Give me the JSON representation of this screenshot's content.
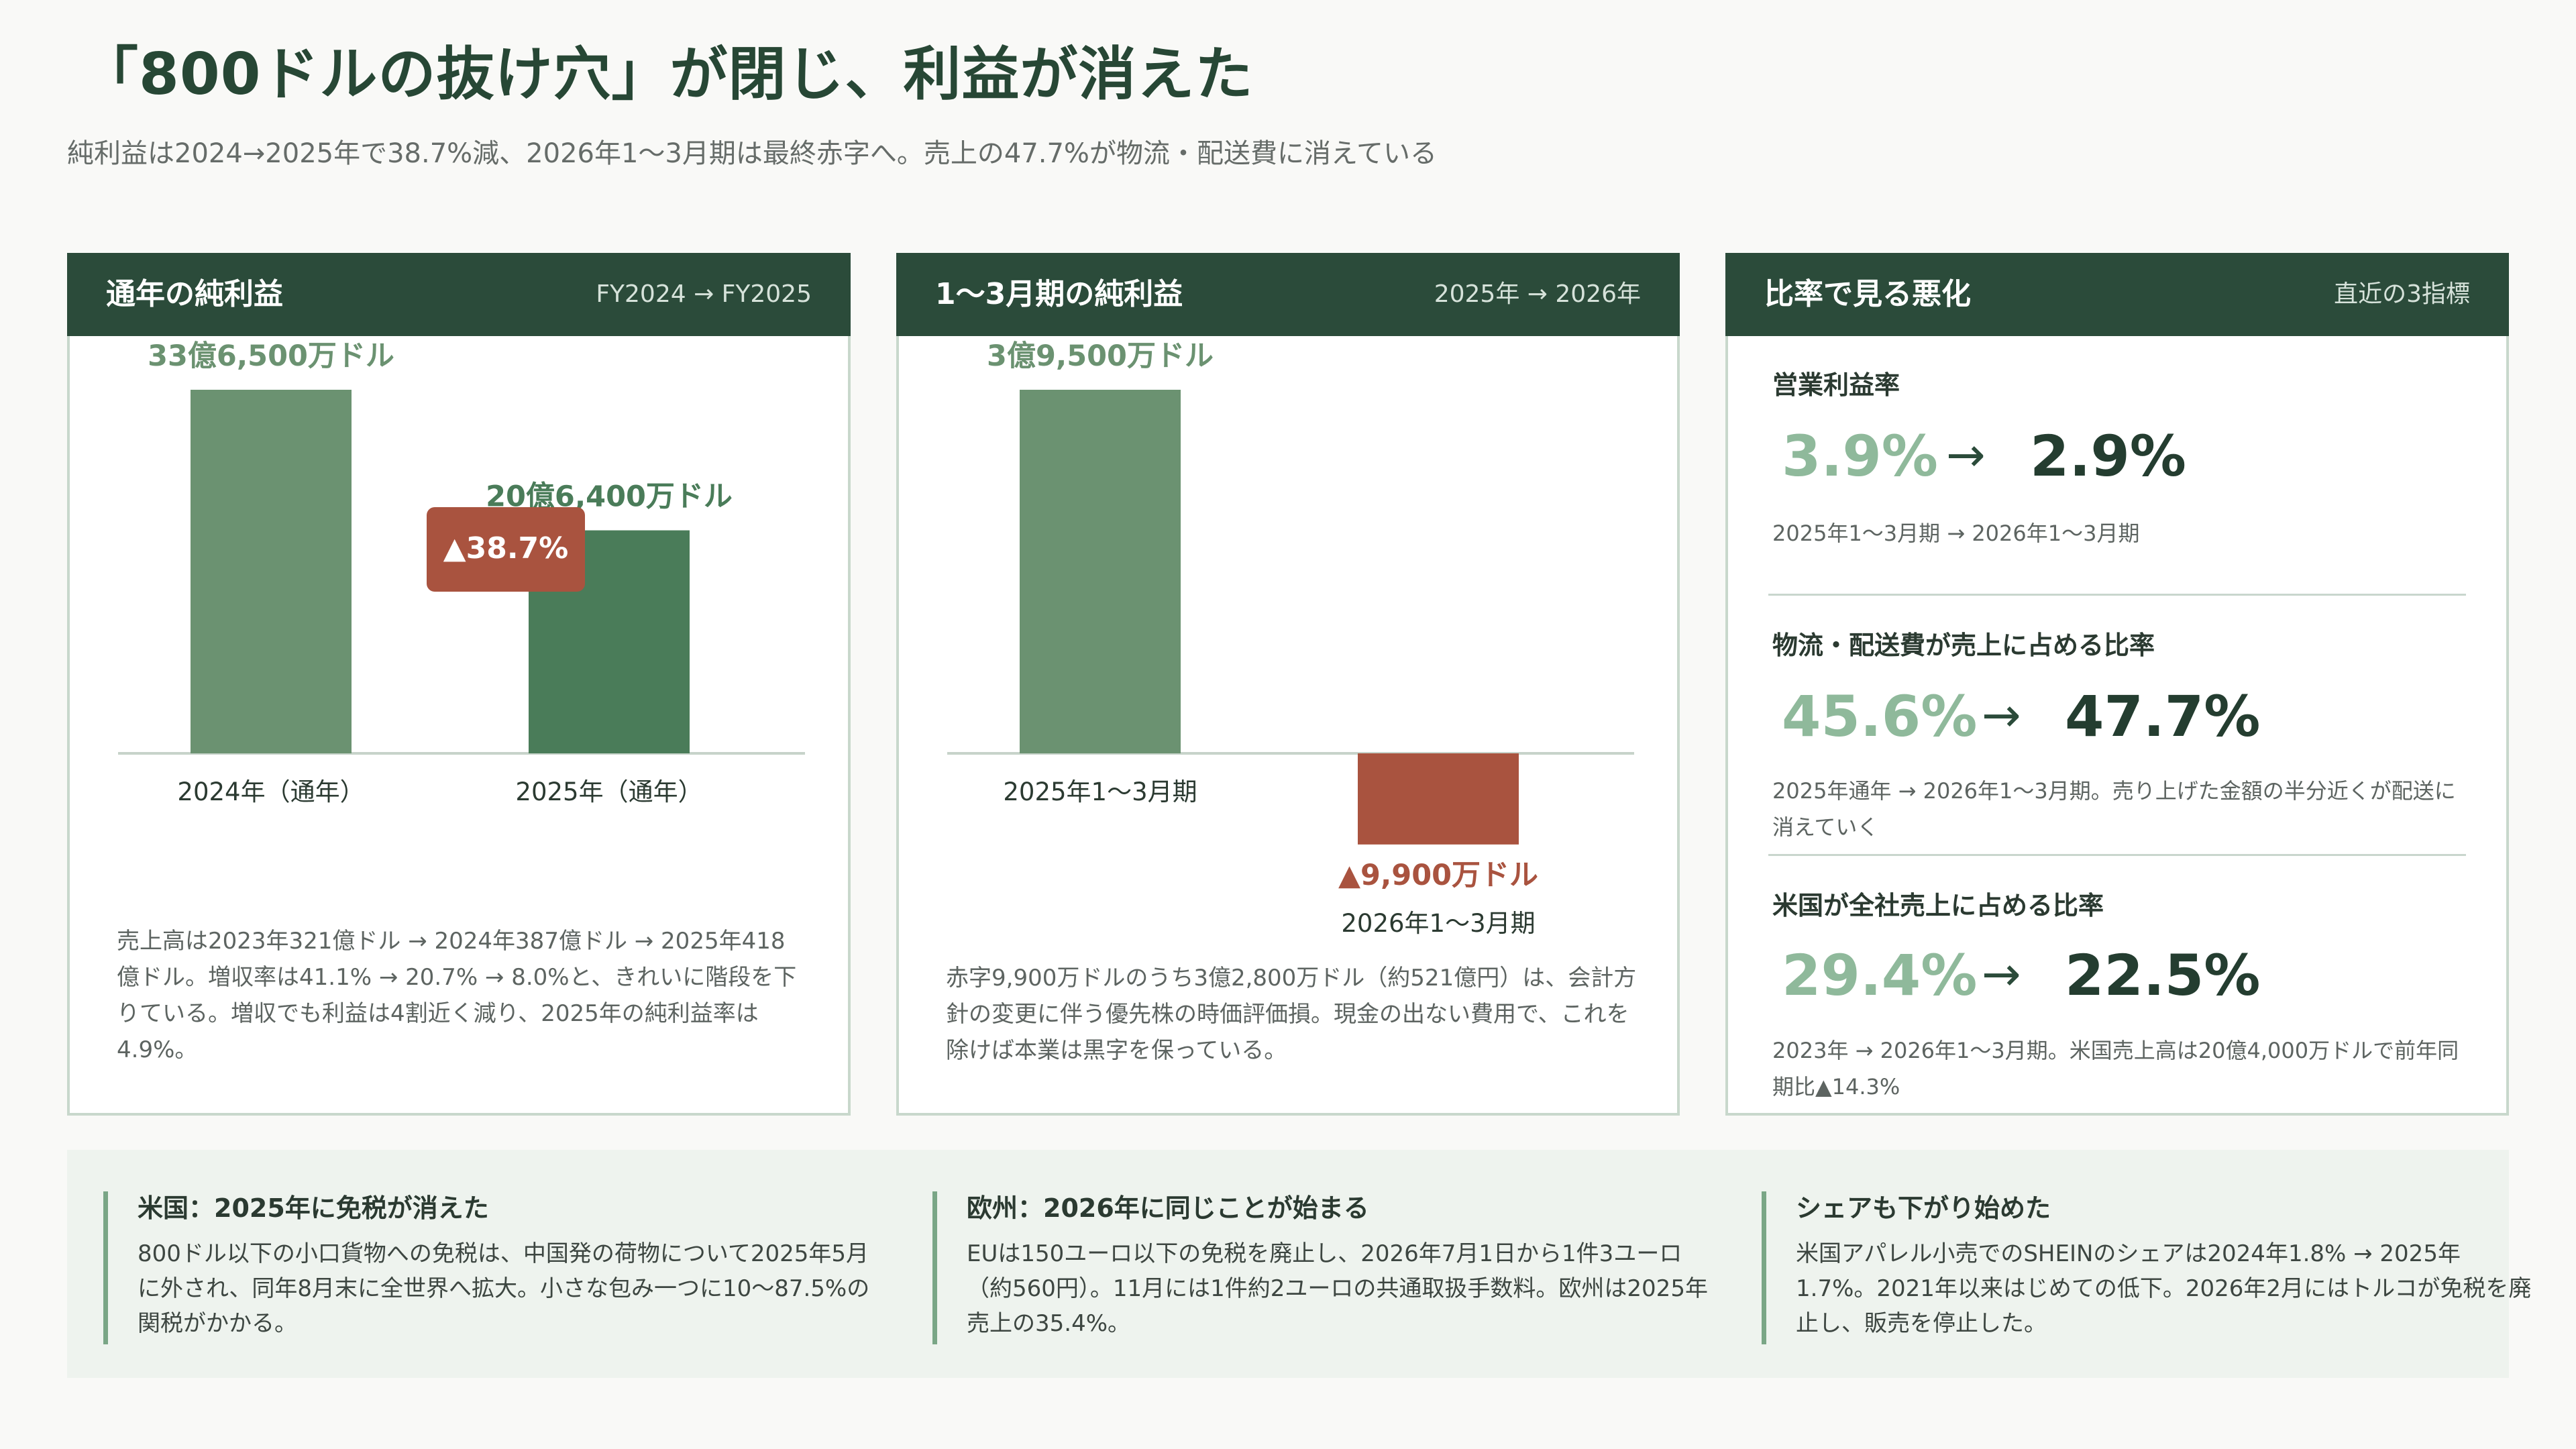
{
  "title": "「800ドルの抜け穴」が閉じ、利益が消えた",
  "subtitle": "純利益は2024→2025年で38.7%減、2026年1〜3月期は最終赤字へ。売上の47.7%が物流・配送費に消えている",
  "colors": {
    "header_bg": "#2b4b3a",
    "bar_light": "#6b9271",
    "bar_dark": "#4a7c59",
    "negative": "#a9533f",
    "ratio_from": "#8fb99b",
    "ratio_to": "#243d30"
  },
  "cards": {
    "annual": {
      "title": "通年の純利益",
      "range": "FY2024 → FY2025",
      "note": "売上高は2023年321億ドル → 2024年387億ドル → 2025年418億ドル。増収率は41.1% → 20.7% → 8.0%と、きれいに階段を下りている。増収でも利益は4割近く減り、2025年の純利益率は4.9%。"
    },
    "quarter": {
      "title": "1〜3月期の純利益",
      "range": "2025年 → 2026年",
      "note": "赤字9,900万ドルのうち3億2,800万ドル（約521億円）は、会計方針の変更に伴う優先株の時価評価損。現金の出ない費用で、これを除けば本業は黒字を保っている。"
    },
    "ratios": {
      "title": "比率で見る悪化",
      "range": "直近の3指標",
      "items": [
        {
          "name": "営業利益率",
          "from": "3.9%",
          "arrow": "→",
          "to": "2.9%",
          "note": "2025年1〜3月期 → 2026年1〜3月期"
        },
        {
          "name": "物流・配送費が売上に占める比率",
          "from": "45.6%",
          "arrow": "→",
          "to": "47.7%",
          "note": "2025年通年 → 2026年1〜3月期。売り上げた金額の半分近くが配送に消えていく"
        },
        {
          "name": "米国が全社売上に占める比率",
          "from": "29.4%",
          "arrow": "→",
          "to": "22.5%",
          "note": "2023年 → 2026年1〜3月期。米国売上高は20億4,000万ドルで前年同期比▲14.3%"
        }
      ]
    }
  },
  "chart_data": [
    {
      "type": "bar",
      "title": "通年の純利益",
      "categories": [
        "2024年（通年）",
        "2025年（通年）"
      ],
      "values": [
        3.365,
        2.064
      ],
      "unit": "billion USD",
      "value_labels": [
        "33億6,500万ドル",
        "20億6,400万ドル"
      ],
      "change_badge": "▲38.7%",
      "ylim": [
        0,
        3.365
      ]
    },
    {
      "type": "bar",
      "title": "1〜3月期の純利益",
      "categories": [
        "2025年1〜3月期",
        "2026年1〜3月期"
      ],
      "values": [
        0.395,
        -0.099
      ],
      "unit": "billion USD",
      "value_labels": [
        "3億9,500万ドル",
        "▲9,900万ドル"
      ],
      "ylim": [
        -0.099,
        0.395
      ]
    }
  ],
  "bottom": [
    {
      "title": "米国：2025年に免税が消えた",
      "text": "800ドル以下の小口貨物への免税は、中国発の荷物について2025年5月に外され、同年8月末に全世界へ拡大。小さな包み一つに10〜87.5%の関税がかかる。"
    },
    {
      "title": "欧州：2026年に同じことが始まる",
      "text": "EUは150ユーロ以下の免税を廃止し、2026年7月1日から1件3ユーロ（約560円）。11月には1件約2ユーロの共通取扱手数料。欧州は2025年売上の35.4%。"
    },
    {
      "title": "シェアも下がり始めた",
      "text": "米国アパレル小売でのSHEINのシェアは2024年1.8% → 2025年1.7%。2021年以来はじめての低下。2026年2月にはトルコが免税を廃止し、販売を停止した。"
    }
  ]
}
